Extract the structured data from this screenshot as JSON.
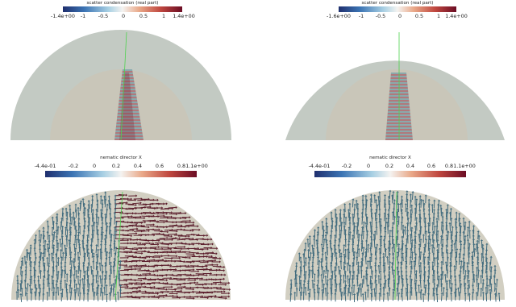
{
  "colors": {
    "background": "#ffffff",
    "domain_fill": "#c3cac3",
    "inner_fill": "#c9c6b9",
    "arrow_teal": "#3f6a7d",
    "arrow_maroon": "#5a1c2b",
    "director_line": "#4fd24f",
    "colormap": [
      "#1f2f6e",
      "#3b74b4",
      "#a7cfe3",
      "#f4f3f1",
      "#e9a888",
      "#c0473f",
      "#6b0d24"
    ]
  },
  "panels": [
    {
      "id": "top-left",
      "colorbar": {
        "title": "scatter condensation (real part)",
        "ticks": [
          "-1.4e+00",
          "-1",
          "-0.5",
          "0",
          "0.5",
          "1",
          "1.4e+00"
        ]
      }
    },
    {
      "id": "top-right",
      "colorbar": {
        "title": "scatter condensation (real part)",
        "ticks": [
          "-1.6e+00",
          "-1",
          "-0.5",
          "0",
          "0.5",
          "1",
          "1.4e+00"
        ]
      }
    },
    {
      "id": "bottom-left",
      "colorbar": {
        "title": "nematic director X",
        "ticks": [
          "-4.4e-01",
          "-0.2",
          "0",
          "0.2",
          "0.4",
          "0.6",
          "0.8",
          "1.1e+00"
        ]
      }
    },
    {
      "id": "bottom-right",
      "colorbar": {
        "title": "nematic director X",
        "ticks": [
          "-4.4e-01",
          "-0.2",
          "0",
          "0.2",
          "0.4",
          "0.6",
          "0.8",
          "1.1e+00"
        ]
      }
    }
  ]
}
